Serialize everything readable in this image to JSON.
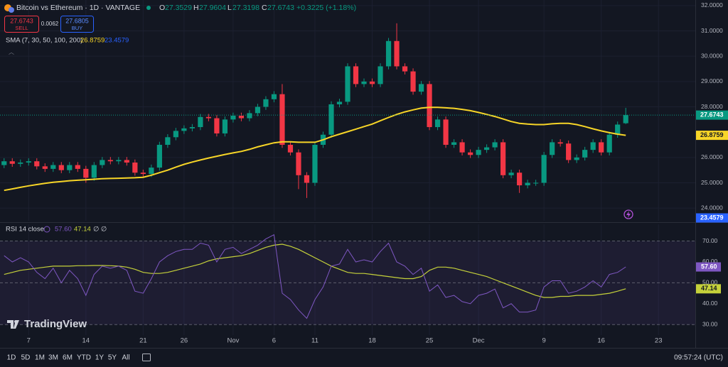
{
  "header": {
    "symbol": "Bitcoin vs Ethereum · 1D · VANTAGE",
    "ohlc_labels": [
      "O",
      "H",
      "L",
      "C"
    ],
    "change": "+0.3225 (+1.18%)"
  },
  "trade": {
    "sell_label": "SELL",
    "spread": 0.0062,
    "buy_price": 27.6805,
    "buy_label": "BUY"
  },
  "watermark": "TradingView",
  "toolbar": {
    "ranges": [
      "1D",
      "5D",
      "1M",
      "3M",
      "6M",
      "YTD",
      "1Y",
      "5Y",
      "All"
    ],
    "clock": "09:57:24 (UTC)"
  },
  "chart_data": [
    {
      "type": "candlestick",
      "indicator": "SMA (7, 30, 50, 100, 200)",
      "up_color": "#089981",
      "down_color": "#f23645",
      "open": [
        25.7,
        25.85,
        25.75,
        25.8,
        25.85,
        25.65,
        25.55,
        25.7,
        25.5,
        25.7,
        25.55,
        25.2,
        25.7,
        25.9,
        25.85,
        25.9,
        25.8,
        25.4,
        25.35,
        25.6,
        26.5,
        26.8,
        27.05,
        27.15,
        27.2,
        27.6,
        27.55,
        26.95,
        27.5,
        27.65,
        27.55,
        27.75,
        28.0,
        28.3,
        28.5,
        26.5,
        26.2,
        25.3,
        25.0,
        26.5,
        26.9,
        28.1,
        28.2,
        29.6,
        28.9,
        29.0,
        28.9,
        29.6,
        30.6,
        29.6,
        29.4,
        28.6,
        28.9,
        27.2,
        27.5,
        26.5,
        26.6,
        26.2,
        26.1,
        26.3,
        26.4,
        26.6,
        25.3,
        25.4,
        24.9,
        25.0,
        25.0,
        26.1,
        26.6,
        26.55,
        25.9,
        26.0,
        26.3,
        26.6,
        26.2,
        26.9,
        27.3529
      ],
      "high": [
        25.97,
        25.97,
        25.92,
        25.97,
        25.97,
        25.77,
        25.82,
        25.82,
        25.82,
        25.82,
        25.67,
        25.82,
        26.02,
        26.02,
        26.02,
        26.02,
        25.92,
        25.52,
        25.72,
        26.62,
        26.92,
        27.17,
        27.27,
        27.32,
        27.72,
        27.72,
        27.67,
        27.62,
        27.77,
        27.77,
        27.87,
        28.12,
        28.42,
        28.62,
        28.9,
        26.62,
        26.32,
        25.42,
        26.62,
        27.02,
        28.22,
        28.32,
        29.72,
        29.72,
        29.12,
        29.12,
        29.72,
        30.72,
        31.3,
        29.72,
        29.52,
        29.02,
        29.02,
        27.62,
        27.62,
        26.72,
        26.72,
        26.32,
        26.42,
        26.52,
        26.72,
        26.72,
        25.52,
        25.52,
        25.12,
        25.12,
        26.22,
        26.72,
        26.72,
        26.67,
        26.12,
        26.42,
        26.72,
        26.72,
        27.02,
        27.42,
        27.9604
      ],
      "low": [
        25.58,
        25.63,
        25.63,
        25.68,
        25.53,
        25.43,
        25.43,
        25.38,
        25.38,
        25.43,
        25.0,
        25.08,
        25.58,
        25.73,
        25.73,
        25.68,
        25.28,
        25.23,
        25.23,
        25.48,
        26.38,
        26.68,
        26.93,
        27.03,
        27.08,
        27.43,
        26.83,
        26.83,
        27.38,
        27.43,
        27.43,
        27.63,
        27.88,
        28.18,
        26.38,
        26.08,
        24.75,
        24.4,
        24.88,
        26.38,
        26.78,
        27.98,
        28.08,
        28.78,
        28.78,
        28.78,
        28.78,
        29.48,
        29.48,
        29.28,
        28.48,
        28.48,
        27.08,
        27.08,
        26.38,
        26.38,
        26.08,
        25.98,
        25.98,
        26.18,
        26.28,
        25.18,
        25.18,
        24.6,
        24.78,
        24.88,
        24.88,
        25.98,
        26.43,
        25.78,
        25.78,
        25.88,
        26.18,
        26.08,
        26.08,
        26.78,
        27.3198
      ],
      "close": [
        25.85,
        25.75,
        25.8,
        25.85,
        25.65,
        25.55,
        25.7,
        25.5,
        25.7,
        25.55,
        25.2,
        25.7,
        25.9,
        25.85,
        25.9,
        25.8,
        25.4,
        25.35,
        25.6,
        26.5,
        26.8,
        27.05,
        27.15,
        27.2,
        27.6,
        27.55,
        26.95,
        27.5,
        27.65,
        27.55,
        27.75,
        28.0,
        28.3,
        28.5,
        26.5,
        26.2,
        25.3,
        25.0,
        26.5,
        26.9,
        28.1,
        28.2,
        29.6,
        28.9,
        29.0,
        28.9,
        29.6,
        30.6,
        29.6,
        29.4,
        28.6,
        28.9,
        27.2,
        27.5,
        26.5,
        26.6,
        26.2,
        26.1,
        26.3,
        26.4,
        26.6,
        25.3,
        25.4,
        24.9,
        25.0,
        25.0,
        26.1,
        26.6,
        26.55,
        25.9,
        26.0,
        26.3,
        26.6,
        26.2,
        26.9,
        27.3,
        27.6743
      ],
      "sma": {
        "color": "#f7d527",
        "values": [
          24.7,
          24.76,
          24.82,
          24.88,
          24.93,
          24.98,
          25.02,
          25.05,
          25.08,
          25.1,
          25.12,
          25.14,
          25.16,
          25.17,
          25.18,
          25.19,
          25.2,
          25.22,
          25.3,
          25.4,
          25.5,
          25.62,
          25.73,
          25.82,
          25.9,
          25.98,
          26.05,
          26.12,
          26.18,
          26.24,
          26.32,
          26.42,
          26.5,
          26.58,
          26.62,
          26.62,
          26.6,
          26.6,
          26.6,
          26.7,
          26.82,
          26.92,
          27.02,
          27.12,
          27.22,
          27.32,
          27.45,
          27.58,
          27.7,
          27.8,
          27.88,
          27.95,
          27.98,
          27.98,
          27.96,
          27.94,
          27.9,
          27.85,
          27.78,
          27.7,
          27.62,
          27.52,
          27.42,
          27.35,
          27.32,
          27.3,
          27.3,
          27.33,
          27.35,
          27.35,
          27.3,
          27.22,
          27.13,
          27.05,
          26.98,
          26.92,
          26.8759
        ]
      },
      "sma_long": {
        "color": "#2962ff",
        "value": 23.4579
      },
      "ylim": [
        23.5,
        32.22
      ],
      "yticks": [
        {
          "value": 24,
          "label": "24.0000"
        },
        {
          "value": 25,
          "label": "25.0000"
        },
        {
          "value": 26,
          "label": "26.0000"
        },
        {
          "value": 28,
          "label": "28.0000"
        },
        {
          "value": 29,
          "label": "29.0000"
        },
        {
          "value": 30,
          "label": "30.0000"
        },
        {
          "value": 31,
          "label": "31.0000"
        },
        {
          "value": 32,
          "label": "32.0000"
        }
      ],
      "grid": true
    },
    {
      "type": "line",
      "indicator": "RSI 14 close",
      "legend_values": [
        "57.60",
        "47.14"
      ],
      "legend_extra": "∅ ∅",
      "series": [
        {
          "color": "#7e57c2",
          "values": [
            63,
            60,
            62,
            60,
            55,
            52,
            57,
            50,
            56,
            52,
            44,
            54,
            58,
            57,
            58,
            56,
            46,
            45,
            52,
            60,
            63,
            65,
            66,
            66,
            69,
            68,
            60,
            66,
            67,
            64,
            66,
            68,
            71,
            73,
            45,
            42,
            37,
            33,
            42,
            48,
            58,
            59,
            66,
            60,
            61,
            60,
            65,
            69,
            60,
            58,
            54,
            57,
            46,
            49,
            43,
            44,
            41,
            40,
            44,
            45,
            47,
            38,
            40,
            36,
            36,
            37,
            48,
            51,
            51,
            45,
            46,
            48,
            51,
            48,
            54,
            55,
            57.6
          ]
        },
        {
          "color": "#c5d13a",
          "values": [
            54,
            55,
            56,
            56.5,
            57,
            57.5,
            58,
            58,
            58,
            58.2,
            58.2,
            58.3,
            58.3,
            58.2,
            58,
            57.5,
            56.5,
            55,
            54.5,
            54.5,
            55,
            56,
            57,
            58,
            59,
            60.5,
            61.5,
            62,
            62.5,
            63,
            64,
            65.5,
            67,
            68,
            68.5,
            67.5,
            66,
            64,
            62,
            60,
            58,
            56.5,
            55,
            54.5,
            54.5,
            54,
            53.5,
            53,
            52.5,
            52,
            52,
            53,
            56,
            57.5,
            57.5,
            57,
            56,
            55,
            54,
            53,
            51.5,
            50,
            48.5,
            47,
            45.5,
            44,
            43,
            43,
            43.5,
            43.5,
            44,
            44,
            44,
            44.5,
            45,
            46,
            47.14
          ]
        }
      ],
      "band_color": "#7e57c2",
      "ylim": [
        25,
        78
      ],
      "yticks": [
        {
          "value": 30,
          "label": "30.00"
        },
        {
          "value": 40,
          "label": "40.00"
        },
        {
          "value": 50,
          "label": "50.00"
        },
        {
          "value": 60,
          "label": "60.00"
        },
        {
          "value": 70,
          "label": "70.00"
        }
      ],
      "xlim": [
        -0.5,
        84.5
      ],
      "xticks": [
        {
          "value": 3,
          "label": "7"
        },
        {
          "value": 10,
          "label": "14"
        },
        {
          "value": 17,
          "label": "21"
        },
        {
          "value": 22,
          "label": "26"
        },
        {
          "value": 28,
          "label": "Nov"
        },
        {
          "value": 33,
          "label": "6"
        },
        {
          "value": 38,
          "label": "11"
        },
        {
          "value": 45,
          "label": "18"
        },
        {
          "value": 52,
          "label": "25"
        },
        {
          "value": 58,
          "label": "Dec"
        },
        {
          "value": 66,
          "label": "9"
        },
        {
          "value": 73,
          "label": "16"
        },
        {
          "value": 80,
          "label": "23"
        }
      ]
    }
  ]
}
